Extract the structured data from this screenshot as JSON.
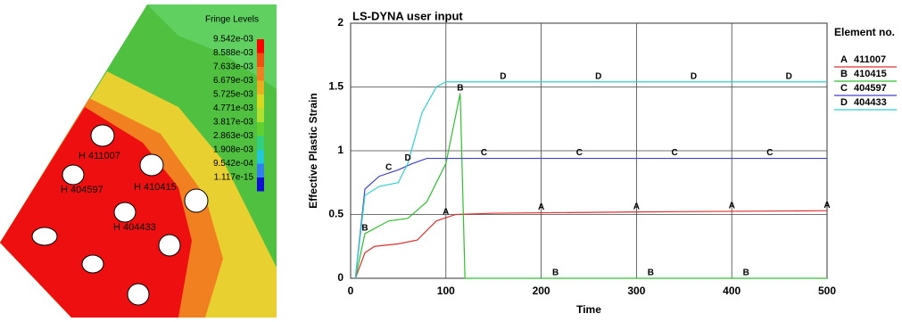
{
  "chart_data": {
    "type": "line",
    "title": "LS-DYNA user input",
    "x_label": "Time",
    "y_label": "Effective Plastic Strain",
    "legend_title": "Element no.",
    "xlim": [
      0,
      500
    ],
    "xticks": [
      0,
      100,
      200,
      300,
      400,
      500
    ],
    "ylim": [
      0,
      2
    ],
    "yticks": [
      0,
      0.5,
      1,
      1.5,
      2
    ],
    "grid": true,
    "series": [
      {
        "name": "411007",
        "marker": "A",
        "color": "#e03030",
        "x": [
          5,
          15,
          25,
          50,
          70,
          90,
          110,
          150,
          300,
          500
        ],
        "values": [
          0,
          0.2,
          0.25,
          0.27,
          0.3,
          0.45,
          0.5,
          0.51,
          0.52,
          0.53
        ]
      },
      {
        "name": "410415",
        "marker": "B",
        "color": "#30c030",
        "x": [
          5,
          15,
          40,
          60,
          80,
          100,
          115,
          120,
          300,
          500
        ],
        "values": [
          0,
          0.35,
          0.45,
          0.47,
          0.6,
          0.9,
          1.45,
          0,
          0,
          0
        ]
      },
      {
        "name": "404597",
        "marker": "C",
        "color": "#4040d0",
        "x": [
          5,
          15,
          30,
          50,
          65,
          80,
          300,
          500
        ],
        "values": [
          0,
          0.7,
          0.8,
          0.85,
          0.9,
          0.94,
          0.94,
          0.94
        ]
      },
      {
        "name": "404433",
        "marker": "D",
        "color": "#30d0d0",
        "x": [
          5,
          15,
          30,
          50,
          60,
          75,
          90,
          100,
          300,
          500
        ],
        "values": [
          0,
          0.65,
          0.72,
          0.75,
          0.9,
          1.3,
          1.5,
          1.54,
          1.54,
          1.54
        ]
      }
    ]
  },
  "contour": {
    "fringe_title": "Fringe Levels",
    "fringe_levels": [
      "9.542e-03",
      "8.588e-03",
      "7.633e-03",
      "6.679e-03",
      "5.725e-03",
      "4.771e-03",
      "3.817e-03",
      "2.863e-03",
      "1.908e-03",
      "9.542e-04",
      "1.117e-15"
    ],
    "fringe_colors": [
      "#ff0000",
      "#f05010",
      "#f08020",
      "#e8b020",
      "#d8d820",
      "#b0e030",
      "#60d030",
      "#30d080",
      "#20c8d8",
      "#3080f0",
      "#1010d0"
    ],
    "node_labels": [
      "H 411007",
      "H 404597",
      "H 410415",
      "H 404433"
    ]
  }
}
